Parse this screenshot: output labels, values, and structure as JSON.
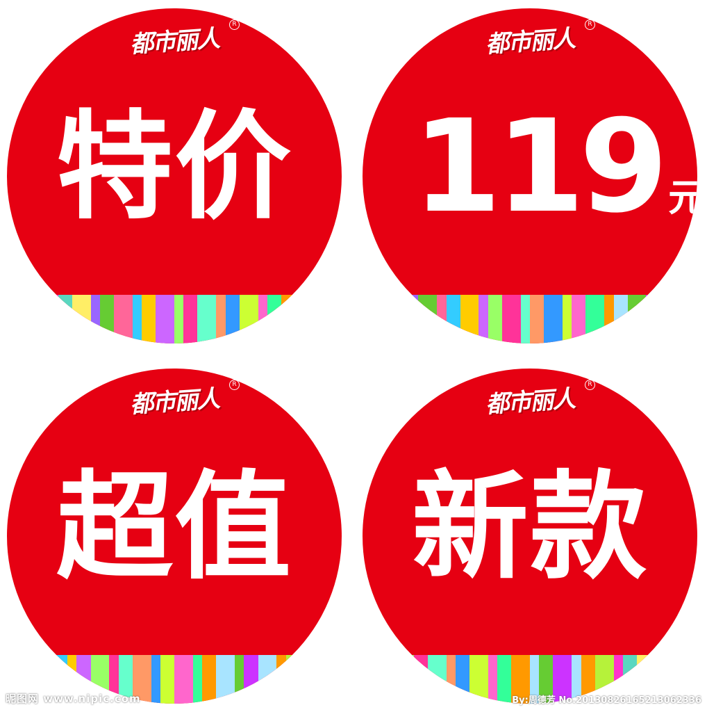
{
  "colors": {
    "badge_red": "#e60012",
    "text_white": "#ffffff",
    "stripes": [
      "#a8e4ff",
      "#ff9900",
      "#b6f23a",
      "#ff33cc",
      "#5ad7c0",
      "#ffee66",
      "#9966ff",
      "#66cc33",
      "#ff6699",
      "#33ccff",
      "#ffcc00",
      "#cc66ff",
      "#99ff66",
      "#ff3399",
      "#66ffcc",
      "#ff9966",
      "#3399ff",
      "#ccff33",
      "#ff66cc",
      "#33ff99",
      "#ff9900",
      "#a8e4ff",
      "#66cc33",
      "#cc33ff"
    ]
  },
  "badges": [
    {
      "logo": "都市丽人",
      "logo_mark": "R",
      "text": "特价"
    },
    {
      "logo": "都市丽人",
      "logo_mark": "R",
      "price_number": "119",
      "price_unit": "元"
    },
    {
      "logo": "都市丽人",
      "logo_mark": "R",
      "text": "超值"
    },
    {
      "logo": "都市丽人",
      "logo_mark": "R",
      "text": "新款"
    }
  ],
  "watermark": {
    "left": "昵图网 www.nipic.com",
    "right": "By:周德芳 No.20130826165213062336"
  }
}
